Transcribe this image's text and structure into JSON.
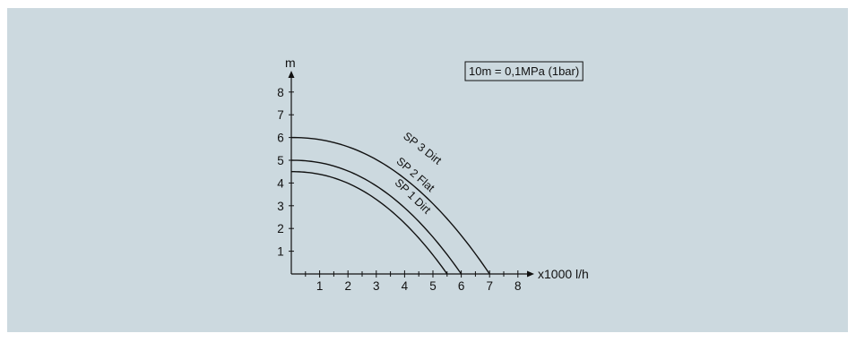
{
  "chart_data": {
    "type": "line",
    "xlabel": "x1000 l/h",
    "ylabel": "m",
    "xlim": [
      0,
      8.5
    ],
    "ylim": [
      0,
      8.5
    ],
    "x_ticks": [
      "1",
      "2",
      "3",
      "4",
      "5",
      "6",
      "7",
      "8"
    ],
    "y_ticks": [
      "1",
      "2",
      "3",
      "4",
      "5",
      "6",
      "7",
      "8"
    ],
    "grid": false,
    "annotation": "10m = 0,1MPa (1bar)",
    "series": [
      {
        "name": "SP 3 Dirt",
        "shutoff_head": 6.0,
        "max_flow": 7.0,
        "x": [
          0,
          1,
          2,
          3,
          4,
          5,
          6,
          6.5,
          7.0
        ],
        "y": [
          6.0,
          5.88,
          5.51,
          4.9,
          4.04,
          2.94,
          1.59,
          0.81,
          0
        ]
      },
      {
        "name": "SP 2 Flat",
        "shutoff_head": 5.0,
        "max_flow": 6.0,
        "x": [
          0,
          1,
          2,
          3,
          4,
          5,
          5.5,
          6.0
        ],
        "y": [
          5.0,
          4.86,
          4.44,
          3.75,
          2.78,
          1.53,
          0.8,
          0
        ]
      },
      {
        "name": "SP 1 Dirt",
        "shutoff_head": 4.5,
        "max_flow": 5.5,
        "x": [
          0,
          1,
          2,
          3,
          4,
          5,
          5.5
        ],
        "y": [
          4.5,
          4.35,
          3.9,
          3.16,
          2.12,
          0.78,
          0
        ]
      }
    ]
  }
}
